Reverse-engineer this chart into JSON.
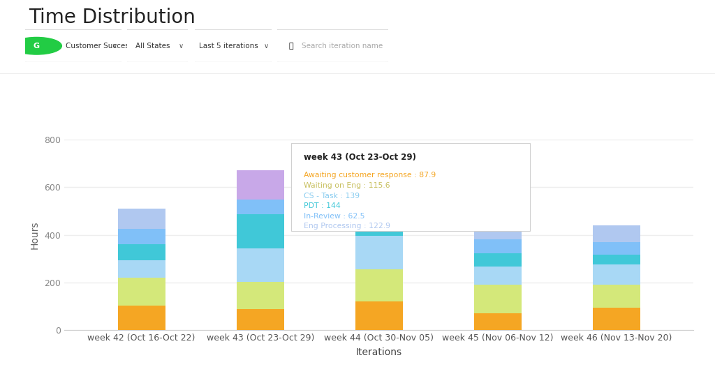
{
  "title": "Time Distribution",
  "xlabel": "Iterations",
  "ylabel": "Hours",
  "ylim": [
    0,
    800
  ],
  "yticks": [
    0,
    200,
    400,
    600,
    800
  ],
  "categories": [
    "week 42 (Oct 16-Oct 22)",
    "week 43 (Oct 23-Oct 29)",
    "week 44 (Oct 30-Nov 05)",
    "week 45 (Nov 06-Nov 12)",
    "week 46 (Nov 13-Nov 20)"
  ],
  "series": [
    {
      "label": "Awaiting customer response",
      "color": "#f5a623",
      "values": [
        105,
        87.9,
        120,
        72,
        95
      ]
    },
    {
      "label": "Waiting on Eng",
      "color": "#d4e87a",
      "values": [
        115,
        115.6,
        135,
        120,
        95
      ]
    },
    {
      "label": "CS - Task",
      "color": "#a8d8f5",
      "values": [
        75,
        139,
        140,
        75,
        85
      ]
    },
    {
      "label": "PDT",
      "color": "#40c8d8",
      "values": [
        65,
        144,
        150,
        55,
        42
      ]
    },
    {
      "label": "In-Review",
      "color": "#80c0f8",
      "values": [
        65,
        62.5,
        65,
        58,
        53
      ]
    },
    {
      "label": "Eng Processing",
      "color": "#b0c8f0",
      "values": [
        85,
        122.9,
        130,
        80,
        70
      ]
    }
  ],
  "highlight_bar_index": 1,
  "highlight_top_color": "#c8a8e8",
  "tooltip_title": "week 43 (Oct 23-Oct 29)",
  "tooltip_entries": [
    {
      "label": "Awaiting customer response",
      "value": "87.9",
      "color": "#f5a623"
    },
    {
      "label": "Waiting on Eng",
      "value": "115.6",
      "color": "#c8c060"
    },
    {
      "label": "CS - Task",
      "value": "139",
      "color": "#88ccf0"
    },
    {
      "label": "PDT",
      "value": "144",
      "color": "#40c8d8"
    },
    {
      "label": "In-Review",
      "value": "62.5",
      "color": "#80c0f8"
    },
    {
      "label": "Eng Processing",
      "value": "122.9",
      "color": "#b0c8f0"
    }
  ],
  "bar_width": 0.4,
  "background_color": "#ffffff",
  "grid_color": "#eeeeee",
  "title_fontsize": 20,
  "axis_label_fontsize": 10,
  "tick_fontsize": 9,
  "figsize": [
    10.24,
    5.26
  ]
}
